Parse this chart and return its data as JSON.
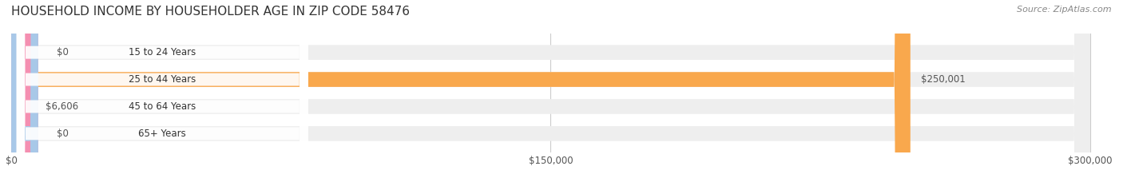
{
  "title": "HOUSEHOLD INCOME BY HOUSEHOLDER AGE IN ZIP CODE 58476",
  "source": "Source: ZipAtlas.com",
  "categories": [
    "15 to 24 Years",
    "25 to 44 Years",
    "45 to 64 Years",
    "65+ Years"
  ],
  "values": [
    0,
    250001,
    6606,
    0
  ],
  "bar_colors": [
    "#f48fb1",
    "#f9a84d",
    "#f48fb1",
    "#a8c8e8"
  ],
  "track_color": "#eeeeee",
  "label_colors": [
    "#555555",
    "#555555",
    "#555555",
    "#555555"
  ],
  "xlim": [
    0,
    300000
  ],
  "xticks": [
    0,
    150000,
    300000
  ],
  "xtick_labels": [
    "$0",
    "$150,000",
    "$300,000"
  ],
  "value_labels": [
    "$0",
    "$250,001",
    "$6,606",
    "$0"
  ],
  "background_color": "#ffffff",
  "bar_height": 0.55,
  "figsize": [
    14.06,
    2.33
  ],
  "dpi": 100
}
